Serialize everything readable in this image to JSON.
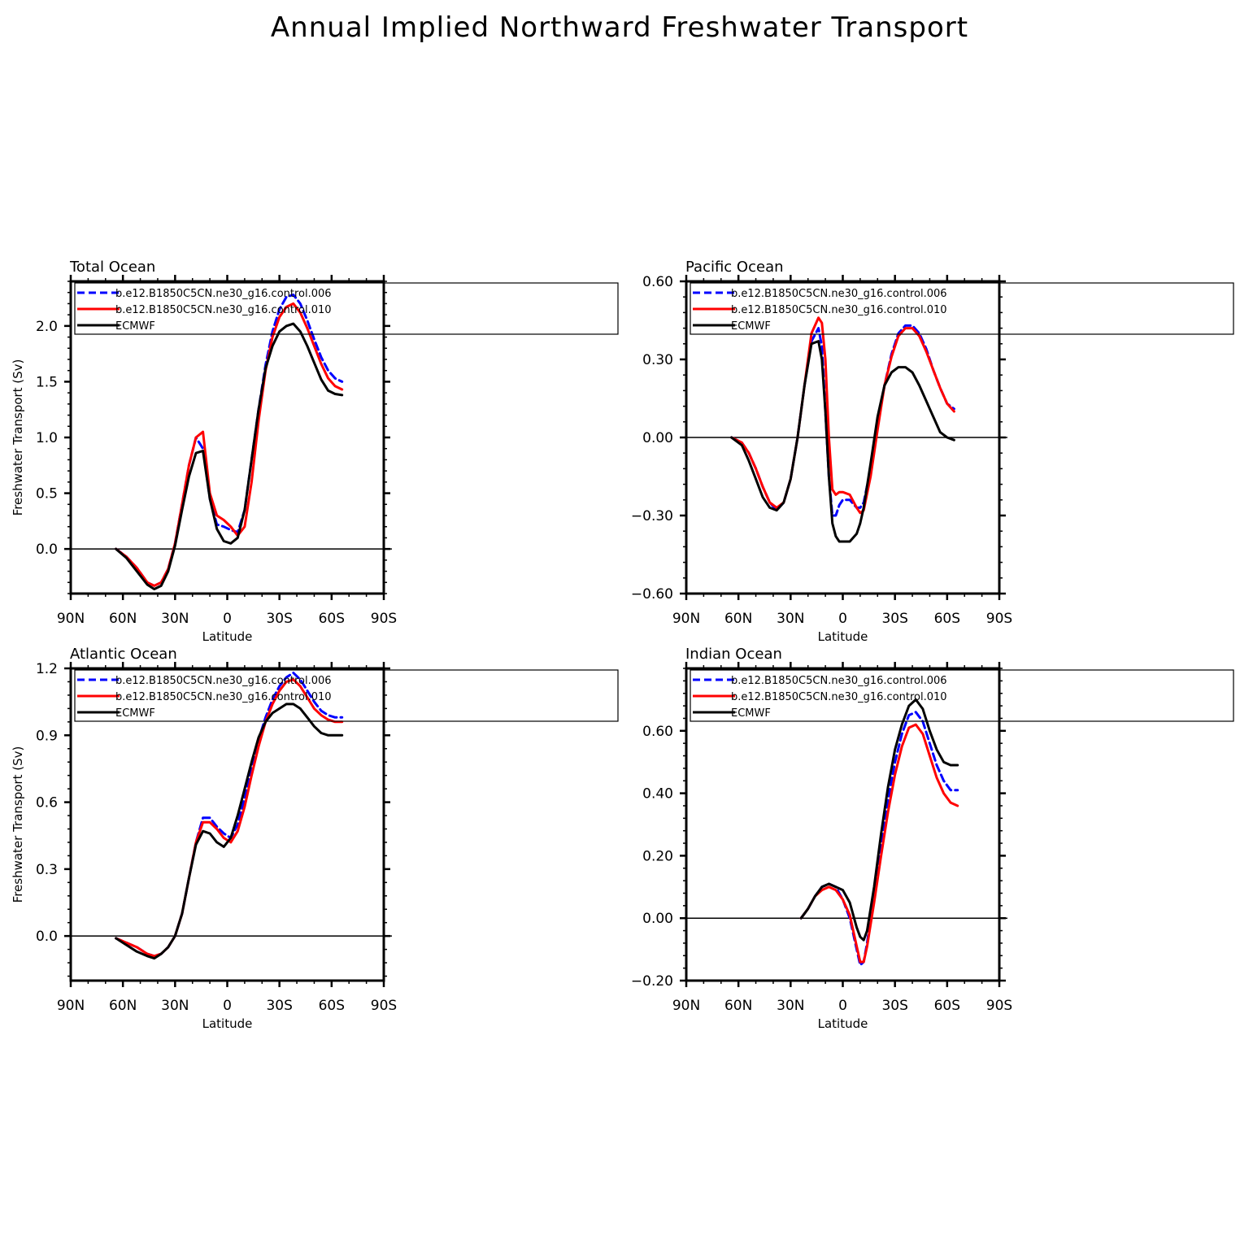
{
  "figure": {
    "title": "Annual Implied Northward Freshwater Transport"
  },
  "colors": {
    "series_006": "#0000ff",
    "series_010": "#ff0000",
    "ecmwf": "#000000"
  },
  "chart_data": [
    {
      "id": "total",
      "type": "line",
      "title": "Total Ocean",
      "xlabel": "Latitude",
      "ylabel": "Freshwater Transport (Sv)",
      "xlim": [
        90,
        -90
      ],
      "ylim": [
        -0.4,
        2.4
      ],
      "xticks": [
        90,
        60,
        30,
        0,
        -30,
        -60,
        -90
      ],
      "xtick_labels": [
        "90N",
        "60N",
        "30N",
        "0",
        "30S",
        "60S",
        "90S"
      ],
      "yticks": [
        0.0,
        0.5,
        1.0,
        1.5,
        2.0
      ],
      "ytick_labels": [
        "0.0",
        "0.5",
        "1.0",
        "1.5",
        "2.0"
      ],
      "zero_line": true,
      "legend": "top-left",
      "series": [
        {
          "name": "b.e12.B1850C5CN.ne30_g16.control.006",
          "style": "dashed",
          "color": "#0000ff",
          "x": [
            64,
            58,
            52,
            46,
            42,
            38,
            34,
            30,
            26,
            22,
            18,
            14,
            10,
            6,
            2,
            -2,
            -6,
            -10,
            -14,
            -18,
            -22,
            -26,
            -30,
            -34,
            -38,
            -42,
            -46,
            -50,
            -54,
            -58,
            -62,
            -66
          ],
          "y": [
            0.0,
            -0.07,
            -0.17,
            -0.3,
            -0.33,
            -0.3,
            -0.18,
            0.05,
            0.4,
            0.75,
            1.0,
            0.9,
            0.45,
            0.22,
            0.2,
            0.17,
            0.15,
            0.35,
            0.8,
            1.25,
            1.65,
            1.95,
            2.15,
            2.26,
            2.28,
            2.2,
            2.05,
            1.88,
            1.72,
            1.6,
            1.53,
            1.5
          ]
        },
        {
          "name": "b.e12.B1850C5CN.ne30_g16.control.010",
          "style": "solid",
          "color": "#ff0000",
          "x": [
            64,
            58,
            52,
            46,
            42,
            38,
            34,
            30,
            26,
            22,
            18,
            14,
            10,
            6,
            2,
            -2,
            -6,
            -10,
            -14,
            -18,
            -22,
            -26,
            -30,
            -34,
            -38,
            -42,
            -46,
            -50,
            -54,
            -58,
            -62,
            -66
          ],
          "y": [
            0.0,
            -0.07,
            -0.17,
            -0.3,
            -0.33,
            -0.3,
            -0.18,
            0.05,
            0.4,
            0.75,
            1.0,
            1.05,
            0.5,
            0.3,
            0.26,
            0.2,
            0.12,
            0.2,
            0.6,
            1.15,
            1.6,
            1.9,
            2.08,
            2.17,
            2.2,
            2.12,
            1.98,
            1.82,
            1.66,
            1.53,
            1.46,
            1.43
          ]
        },
        {
          "name": "ECMWF",
          "style": "solid",
          "color": "#000000",
          "x": [
            64,
            58,
            52,
            46,
            42,
            38,
            34,
            30,
            26,
            22,
            18,
            14,
            10,
            6,
            2,
            -2,
            -6,
            -10,
            -14,
            -18,
            -22,
            -26,
            -30,
            -34,
            -38,
            -42,
            -46,
            -50,
            -54,
            -58,
            -62,
            -66
          ],
          "y": [
            0.0,
            -0.08,
            -0.2,
            -0.32,
            -0.36,
            -0.33,
            -0.2,
            0.03,
            0.35,
            0.65,
            0.86,
            0.88,
            0.45,
            0.18,
            0.07,
            0.05,
            0.1,
            0.35,
            0.8,
            1.25,
            1.62,
            1.82,
            1.95,
            2.0,
            2.02,
            1.95,
            1.82,
            1.67,
            1.52,
            1.42,
            1.39,
            1.38
          ]
        }
      ]
    },
    {
      "id": "pacific",
      "type": "line",
      "title": "Pacific Ocean",
      "xlabel": "Latitude",
      "ylabel": "",
      "xlim": [
        90,
        -90
      ],
      "ylim": [
        -0.6,
        0.6
      ],
      "xticks": [
        90,
        60,
        30,
        0,
        -30,
        -60,
        -90
      ],
      "xtick_labels": [
        "90N",
        "60N",
        "30N",
        "0",
        "30S",
        "60S",
        "90S"
      ],
      "yticks": [
        -0.6,
        -0.3,
        0.0,
        0.3,
        0.6
      ],
      "ytick_labels": [
        "−0.60",
        "−0.30",
        "0.00",
        "0.30",
        "0.60"
      ],
      "zero_line": true,
      "legend": "top-left",
      "series": [
        {
          "name": "b.e12.B1850C5CN.ne30_g16.control.006",
          "style": "dashed",
          "color": "#0000ff",
          "x": [
            64,
            58,
            54,
            50,
            46,
            42,
            38,
            34,
            30,
            26,
            22,
            18,
            14,
            12,
            10,
            8,
            6,
            4,
            2,
            0,
            -4,
            -8,
            -10,
            -12,
            -16,
            -20,
            -24,
            -28,
            -32,
            -36,
            -40,
            -44,
            -48,
            -52,
            -56,
            -60,
            -64
          ],
          "y": [
            0.0,
            -0.02,
            -0.06,
            -0.12,
            -0.19,
            -0.25,
            -0.28,
            -0.25,
            -0.16,
            0.0,
            0.2,
            0.37,
            0.42,
            0.35,
            0.1,
            -0.15,
            -0.3,
            -0.3,
            -0.26,
            -0.24,
            -0.24,
            -0.27,
            -0.27,
            -0.25,
            -0.12,
            0.05,
            0.2,
            0.32,
            0.4,
            0.43,
            0.43,
            0.4,
            0.34,
            0.26,
            0.19,
            0.13,
            0.11
          ]
        },
        {
          "name": "b.e12.B1850C5CN.ne30_g16.control.010",
          "style": "solid",
          "color": "#ff0000",
          "x": [
            64,
            58,
            54,
            50,
            46,
            42,
            38,
            34,
            30,
            26,
            22,
            18,
            14,
            12,
            10,
            8,
            6,
            4,
            2,
            0,
            -4,
            -8,
            -10,
            -12,
            -16,
            -20,
            -24,
            -28,
            -32,
            -36,
            -40,
            -44,
            -48,
            -52,
            -56,
            -60,
            -64
          ],
          "y": [
            0.0,
            -0.02,
            -0.06,
            -0.12,
            -0.19,
            -0.25,
            -0.27,
            -0.25,
            -0.16,
            0.0,
            0.2,
            0.4,
            0.46,
            0.44,
            0.3,
            0.0,
            -0.2,
            -0.22,
            -0.21,
            -0.21,
            -0.22,
            -0.27,
            -0.29,
            -0.28,
            -0.15,
            0.03,
            0.2,
            0.31,
            0.39,
            0.42,
            0.42,
            0.39,
            0.33,
            0.26,
            0.19,
            0.13,
            0.1
          ]
        },
        {
          "name": "ECMWF",
          "style": "solid",
          "color": "#000000",
          "x": [
            64,
            58,
            54,
            50,
            46,
            42,
            38,
            34,
            30,
            26,
            22,
            18,
            14,
            12,
            10,
            8,
            6,
            4,
            2,
            0,
            -4,
            -8,
            -10,
            -12,
            -16,
            -20,
            -24,
            -28,
            -32,
            -36,
            -40,
            -44,
            -48,
            -52,
            -56,
            -60,
            -64
          ],
          "y": [
            0.0,
            -0.03,
            -0.09,
            -0.16,
            -0.23,
            -0.27,
            -0.28,
            -0.25,
            -0.16,
            0.0,
            0.2,
            0.36,
            0.37,
            0.3,
            0.1,
            -0.15,
            -0.33,
            -0.38,
            -0.4,
            -0.4,
            -0.4,
            -0.37,
            -0.33,
            -0.27,
            -0.1,
            0.08,
            0.2,
            0.25,
            0.27,
            0.27,
            0.25,
            0.2,
            0.14,
            0.08,
            0.02,
            0.0,
            -0.01
          ]
        }
      ]
    },
    {
      "id": "atlantic",
      "type": "line",
      "title": "Atlantic Ocean",
      "xlabel": "Latitude",
      "ylabel": "Freshwater Transport (Sv)",
      "xlim": [
        90,
        -90
      ],
      "ylim": [
        -0.2,
        1.2
      ],
      "xticks": [
        90,
        60,
        30,
        0,
        -30,
        -60,
        -90
      ],
      "xtick_labels": [
        "90N",
        "60N",
        "30N",
        "0",
        "30S",
        "60S",
        "90S"
      ],
      "yticks": [
        0.0,
        0.3,
        0.6,
        0.9,
        1.2
      ],
      "ytick_labels": [
        "0.0",
        "0.3",
        "0.6",
        "0.9",
        "1.2"
      ],
      "zero_line": true,
      "legend": "top-left",
      "series": [
        {
          "name": "b.e12.B1850C5CN.ne30_g16.control.006",
          "style": "dashed",
          "color": "#0000ff",
          "x": [
            64,
            58,
            52,
            46,
            42,
            38,
            34,
            30,
            26,
            22,
            18,
            14,
            10,
            6,
            2,
            -2,
            -6,
            -10,
            -14,
            -18,
            -22,
            -26,
            -30,
            -34,
            -38,
            -42,
            -46,
            -50,
            -54,
            -58,
            -62,
            -66
          ],
          "y": [
            -0.01,
            -0.03,
            -0.05,
            -0.08,
            -0.09,
            -0.08,
            -0.05,
            0.0,
            0.1,
            0.26,
            0.42,
            0.53,
            0.53,
            0.49,
            0.46,
            0.44,
            0.5,
            0.62,
            0.76,
            0.88,
            0.98,
            1.06,
            1.12,
            1.16,
            1.18,
            1.15,
            1.1,
            1.05,
            1.01,
            0.99,
            0.98,
            0.98
          ]
        },
        {
          "name": "b.e12.B1850C5CN.ne30_g16.control.010",
          "style": "solid",
          "color": "#ff0000",
          "x": [
            64,
            58,
            52,
            46,
            42,
            38,
            34,
            30,
            26,
            22,
            18,
            14,
            10,
            6,
            2,
            -2,
            -6,
            -10,
            -14,
            -18,
            -22,
            -26,
            -30,
            -34,
            -38,
            -42,
            -46,
            -50,
            -54,
            -58,
            -62,
            -66
          ],
          "y": [
            -0.01,
            -0.03,
            -0.05,
            -0.08,
            -0.09,
            -0.08,
            -0.05,
            0.0,
            0.1,
            0.26,
            0.42,
            0.51,
            0.51,
            0.48,
            0.44,
            0.42,
            0.47,
            0.58,
            0.72,
            0.85,
            0.96,
            1.04,
            1.1,
            1.14,
            1.15,
            1.12,
            1.07,
            1.02,
            0.99,
            0.97,
            0.96,
            0.96
          ]
        },
        {
          "name": "ECMWF",
          "style": "solid",
          "color": "#000000",
          "x": [
            64,
            58,
            52,
            46,
            42,
            38,
            34,
            30,
            26,
            22,
            18,
            14,
            10,
            6,
            2,
            -2,
            -6,
            -10,
            -14,
            -18,
            -22,
            -26,
            -30,
            -34,
            -38,
            -42,
            -46,
            -50,
            -54,
            -58,
            -62,
            -66
          ],
          "y": [
            -0.01,
            -0.04,
            -0.07,
            -0.09,
            -0.1,
            -0.08,
            -0.05,
            0.0,
            0.1,
            0.26,
            0.41,
            0.47,
            0.46,
            0.42,
            0.4,
            0.44,
            0.54,
            0.66,
            0.78,
            0.89,
            0.96,
            1.0,
            1.02,
            1.04,
            1.04,
            1.02,
            0.98,
            0.94,
            0.91,
            0.9,
            0.9,
            0.9
          ]
        }
      ]
    },
    {
      "id": "indian",
      "type": "line",
      "title": "Indian Ocean",
      "xlabel": "Latitude",
      "ylabel": "",
      "xlim": [
        90,
        -90
      ],
      "ylim": [
        -0.2,
        0.8
      ],
      "xticks": [
        90,
        60,
        30,
        0,
        -30,
        -60,
        -90
      ],
      "xtick_labels": [
        "90N",
        "60N",
        "30N",
        "0",
        "30S",
        "60S",
        "90S"
      ],
      "yticks": [
        -0.2,
        0.0,
        0.2,
        0.4,
        0.6
      ],
      "ytick_labels": [
        "−0.20",
        "0.00",
        "0.20",
        "0.40",
        "0.60"
      ],
      "zero_line": true,
      "legend": "top-left",
      "series": [
        {
          "name": "b.e12.B1850C5CN.ne30_g16.control.006",
          "style": "dashed",
          "color": "#0000ff",
          "x": [
            24,
            20,
            16,
            12,
            8,
            4,
            0,
            -4,
            -8,
            -10,
            -12,
            -14,
            -18,
            -22,
            -26,
            -30,
            -34,
            -38,
            -42,
            -46,
            -50,
            -54,
            -58,
            -62,
            -66
          ],
          "y": [
            0.0,
            0.03,
            0.07,
            0.1,
            0.11,
            0.1,
            0.06,
            0.0,
            -0.1,
            -0.15,
            -0.14,
            -0.08,
            0.08,
            0.24,
            0.38,
            0.5,
            0.59,
            0.65,
            0.66,
            0.63,
            0.56,
            0.49,
            0.44,
            0.41,
            0.41
          ]
        },
        {
          "name": "b.e12.B1850C5CN.ne30_g16.control.010",
          "style": "solid",
          "color": "#ff0000",
          "x": [
            24,
            20,
            16,
            12,
            8,
            4,
            0,
            -4,
            -8,
            -10,
            -12,
            -14,
            -18,
            -22,
            -26,
            -30,
            -34,
            -38,
            -42,
            -46,
            -50,
            -54,
            -58,
            -62,
            -66
          ],
          "y": [
            0.0,
            0.03,
            0.07,
            0.09,
            0.1,
            0.09,
            0.06,
            0.01,
            -0.09,
            -0.14,
            -0.14,
            -0.09,
            0.05,
            0.2,
            0.34,
            0.46,
            0.55,
            0.61,
            0.62,
            0.59,
            0.52,
            0.45,
            0.4,
            0.37,
            0.36
          ]
        },
        {
          "name": "ECMWF",
          "style": "solid",
          "color": "#000000",
          "x": [
            24,
            20,
            16,
            12,
            8,
            4,
            0,
            -4,
            -8,
            -10,
            -12,
            -14,
            -18,
            -22,
            -26,
            -30,
            -34,
            -38,
            -42,
            -46,
            -50,
            -54,
            -58,
            -62,
            -66
          ],
          "y": [
            0.0,
            0.03,
            0.07,
            0.1,
            0.11,
            0.1,
            0.09,
            0.05,
            -0.03,
            -0.06,
            -0.07,
            -0.04,
            0.1,
            0.27,
            0.42,
            0.54,
            0.62,
            0.68,
            0.7,
            0.67,
            0.6,
            0.54,
            0.5,
            0.49,
            0.49
          ]
        }
      ]
    }
  ]
}
